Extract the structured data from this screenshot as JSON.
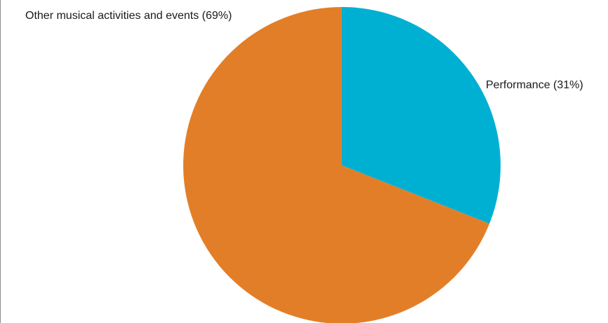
{
  "chart_data": {
    "type": "pie",
    "title": "",
    "start_angle_deg": 0,
    "direction": "clockwise",
    "slices": [
      {
        "label": "Performance (31%)",
        "category": "Performance",
        "value": 31,
        "color": "#00b0d3"
      },
      {
        "label": "Other musical activities and events (69%)",
        "category": "Other musical activities and events",
        "value": 69,
        "color": "#e37e28"
      }
    ],
    "legend": "none",
    "label_placement": "outside"
  }
}
